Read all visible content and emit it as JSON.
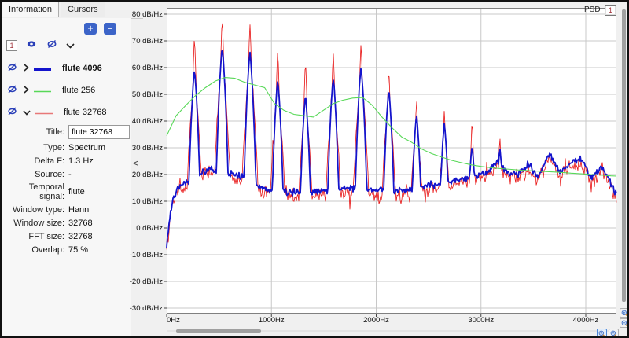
{
  "tabs": [
    {
      "label": "Information",
      "active": true
    },
    {
      "label": "Cursors",
      "active": false
    }
  ],
  "toolbar": {
    "add_label": "+",
    "remove_label": "−"
  },
  "layer_toolbar": {
    "badge": "1"
  },
  "panel": {
    "collapse_glyph": "<"
  },
  "signals": [
    {
      "label": "flute 4096",
      "color": "#1414cc",
      "bold": true
    },
    {
      "label": "flute 256",
      "color": "#58d858",
      "bold": false
    },
    {
      "label": "flute 32768",
      "color": "#e87878",
      "bold": false
    }
  ],
  "properties": {
    "title_label": "Title:",
    "title_value": "flute 32768",
    "rows": [
      {
        "label": "Type:",
        "value": "Spectrum"
      },
      {
        "label": "Delta F:",
        "value": "1.3  Hz"
      },
      {
        "label": "Source:",
        "value": "-"
      },
      {
        "label": "Temporal signal:",
        "value": "flute"
      },
      {
        "label": "Window type:",
        "value": "Hann"
      },
      {
        "label": "Window size:",
        "value": "32768"
      },
      {
        "label": "FFT size:",
        "value": "32768"
      },
      {
        "label": "Overlap:",
        "value": "75  %"
      }
    ]
  },
  "plot": {
    "psd_label": "PSD",
    "badge": "1"
  },
  "chart_data": {
    "type": "line",
    "title": "PSD",
    "x_unit": "Hz",
    "y_unit": "dB/Hz",
    "x_range_hz": [
      0,
      4293
    ],
    "y_range_db": [
      -32,
      82
    ],
    "grid": true,
    "y_gridline_step_db": 10,
    "y_tick_values_db": [
      80,
      70,
      60,
      50,
      40,
      30,
      20,
      10,
      0,
      -10,
      -20,
      -30
    ],
    "y_tick_labels": [
      "80 dB/Hz",
      "70 dB/Hz",
      "60 dB/Hz",
      "50 dB/Hz",
      "40 dB/Hz",
      "30 dB/Hz",
      "20 dB/Hz",
      "10 dB/Hz",
      "0 dB/Hz",
      "-10 dB/Hz",
      "-20 dB/Hz",
      "-30 dB/Hz"
    ],
    "x_tick_values_hz": [
      0,
      1000,
      2000,
      3000,
      4000
    ],
    "x_tick_labels": [
      "0Hz",
      "1000Hz",
      "2000Hz",
      "3000Hz",
      "4000Hz"
    ],
    "series": [
      {
        "name": "flute 32768",
        "color": "#e81212",
        "line_width": 0.8,
        "window_size": 32768,
        "harmonic_freqs_hz": [
          265,
          530,
          795,
          1060,
          1325,
          1590,
          1855,
          2120,
          2385,
          2650,
          2915,
          3180
        ],
        "harmonic_peaks_db": [
          72,
          79,
          76.5,
          67,
          63,
          66,
          69.5,
          60,
          48.5,
          44.5,
          41,
          35
        ],
        "baseline_offset_db": -1.5,
        "noise_db": 3.2
      },
      {
        "name": "flute 4096",
        "color": "#1414cc",
        "line_width": 1.8,
        "window_size": 4096,
        "harmonic_freqs_hz": [
          265,
          530,
          795,
          1060,
          1325,
          1590,
          1855,
          2120,
          2385,
          2650,
          2915,
          3180
        ],
        "harmonic_peaks_db": [
          59,
          67.5,
          65.5,
          55,
          49.5,
          56,
          60.3,
          51.5,
          42.5,
          39,
          31,
          29.7
        ],
        "noise_db": 1.6,
        "baseline_envelope": [
          [
            0,
            -7
          ],
          [
            25,
            3
          ],
          [
            60,
            11
          ],
          [
            110,
            15
          ],
          [
            170,
            17
          ],
          [
            230,
            18
          ],
          [
            400,
            22
          ],
          [
            530,
            21
          ],
          [
            660,
            20
          ],
          [
            790,
            18
          ],
          [
            925,
            14.5
          ],
          [
            1060,
            14
          ],
          [
            1190,
            13.5
          ],
          [
            1325,
            13
          ],
          [
            1455,
            13.5
          ],
          [
            1590,
            14
          ],
          [
            1720,
            15
          ],
          [
            1855,
            14.5
          ],
          [
            1990,
            14
          ],
          [
            2120,
            13.5
          ],
          [
            2250,
            14
          ],
          [
            2385,
            15
          ],
          [
            2520,
            16
          ],
          [
            2650,
            16.5
          ],
          [
            2780,
            18
          ],
          [
            2915,
            19
          ],
          [
            3050,
            21
          ],
          [
            3150,
            25
          ],
          [
            3250,
            21
          ],
          [
            3350,
            20
          ],
          [
            3450,
            24
          ],
          [
            3550,
            19
          ],
          [
            3650,
            28
          ],
          [
            3750,
            21
          ],
          [
            3850,
            24
          ],
          [
            3950,
            26
          ],
          [
            4050,
            19
          ],
          [
            4150,
            23
          ],
          [
            4250,
            16
          ],
          [
            4293,
            12
          ]
        ]
      },
      {
        "name": "flute 256",
        "color": "#58d858",
        "line_width": 1.1,
        "window_size": 256,
        "points": [
          [
            0,
            34.5
          ],
          [
            90,
            42
          ],
          [
            185,
            46
          ],
          [
            275,
            49.5
          ],
          [
            370,
            52.5
          ],
          [
            465,
            55
          ],
          [
            560,
            56.3
          ],
          [
            650,
            56
          ],
          [
            745,
            54.5
          ],
          [
            840,
            53.5
          ],
          [
            935,
            52.5
          ],
          [
            1030,
            46.5
          ],
          [
            1120,
            44
          ],
          [
            1215,
            42.5
          ],
          [
            1310,
            42
          ],
          [
            1400,
            41.5
          ],
          [
            1495,
            44
          ],
          [
            1590,
            46.5
          ],
          [
            1680,
            47.8
          ],
          [
            1775,
            48.6
          ],
          [
            1870,
            48.8
          ],
          [
            1960,
            46
          ],
          [
            2055,
            41.5
          ],
          [
            2150,
            37.5
          ],
          [
            2245,
            34
          ],
          [
            2340,
            32
          ],
          [
            2435,
            29.5
          ],
          [
            2530,
            27.8
          ],
          [
            2625,
            26.5
          ],
          [
            2720,
            25.3
          ],
          [
            2815,
            24.4
          ],
          [
            2910,
            23.6
          ],
          [
            3005,
            23
          ],
          [
            3100,
            22.5
          ],
          [
            3195,
            22.2
          ],
          [
            3290,
            21.9
          ],
          [
            3385,
            21.6
          ],
          [
            3480,
            21.4
          ],
          [
            3575,
            21.2
          ],
          [
            3670,
            21
          ],
          [
            3765,
            20.8
          ],
          [
            3860,
            20.5
          ],
          [
            3955,
            20.3
          ],
          [
            4050,
            20
          ],
          [
            4145,
            19.8
          ],
          [
            4240,
            19.5
          ],
          [
            4293,
            19.4
          ]
        ]
      }
    ]
  }
}
